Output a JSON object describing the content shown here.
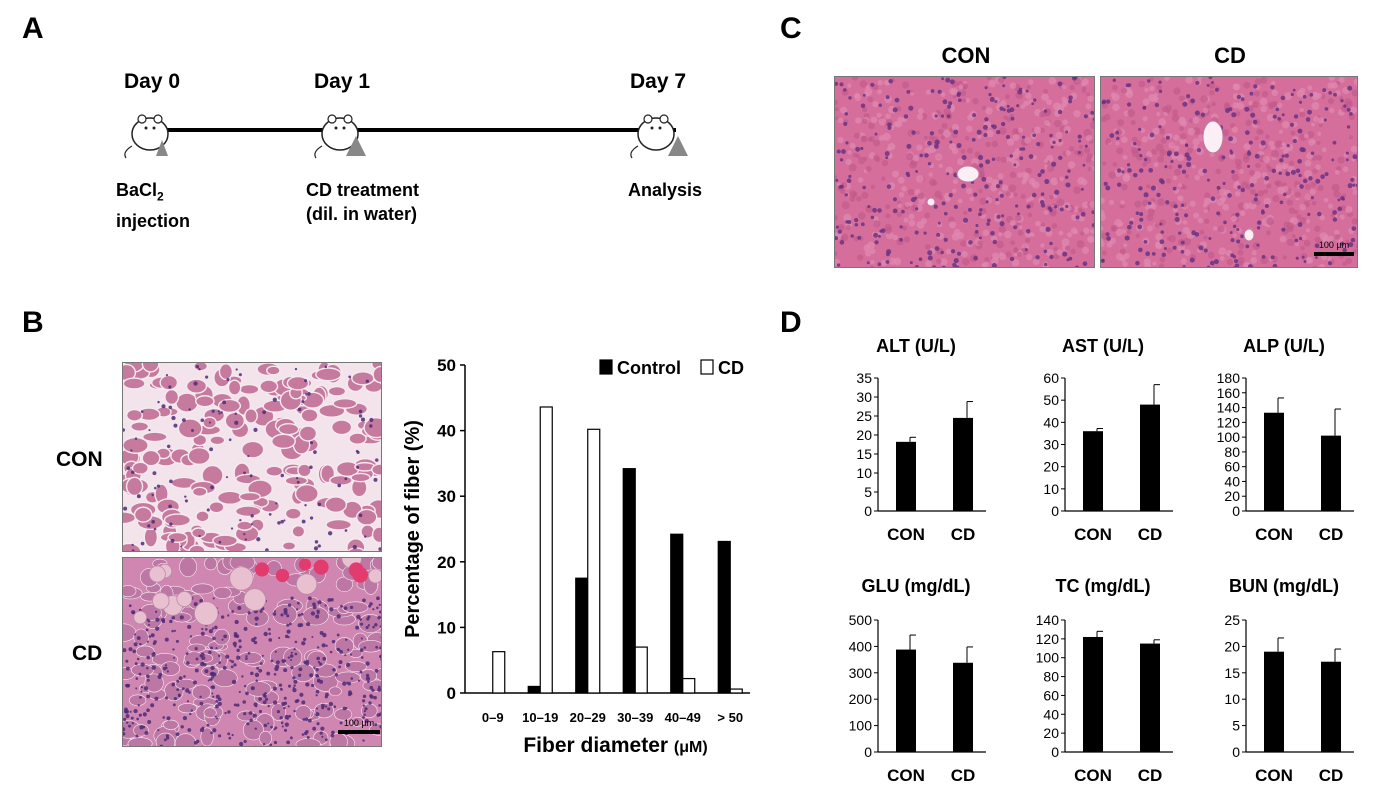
{
  "panels": {
    "a": "A",
    "b": "B",
    "c": "C",
    "d": "D"
  },
  "timeline": {
    "days": [
      "Day 0",
      "Day 1",
      "Day 7"
    ],
    "step0_line1": "BaCl",
    "step0_sub": "2",
    "step0_line2": "injection",
    "step1_line1": "CD treatment",
    "step1_line2": "(dil. in water)",
    "step2": "Analysis"
  },
  "panel_b": {
    "row_labels": [
      "CON",
      "CD"
    ],
    "scale_bar": "100 µm"
  },
  "panel_c": {
    "col_labels": [
      "CON",
      "CD"
    ],
    "scale_bar": "100 µm"
  },
  "colors": {
    "he_pink": "#d9709c",
    "he_purple": "#7a3f8f",
    "muscle_pink": "#c9789e",
    "bar_black": "#000000"
  },
  "chart_data": [
    {
      "type": "bar",
      "id": "fiber-diameter",
      "categories": [
        "0–9",
        "10–19",
        "20–29",
        "30–39",
        "40–49",
        "> 50"
      ],
      "series": [
        {
          "name": "Control",
          "values": [
            0,
            1,
            17.5,
            34.2,
            24.2,
            23.1
          ],
          "fill": "#000000"
        },
        {
          "name": "CD",
          "values": [
            6.3,
            43.6,
            40.2,
            7.0,
            2.2,
            0.6
          ],
          "fill": "#ffffff"
        }
      ],
      "xlabel": "Fiber diameter",
      "xlabel_unit": "(μM)",
      "ylabel": "Percentage of fiber (%)",
      "ylim": [
        0,
        50
      ],
      "yticks": [
        0,
        10,
        20,
        30,
        40,
        50
      ],
      "legend": "top-right"
    },
    {
      "type": "bar",
      "id": "alt",
      "title": "ALT (U/L)",
      "categories": [
        "CON",
        "CD"
      ],
      "values": [
        18.2,
        24.5
      ],
      "errors": [
        1.2,
        4.3
      ],
      "ylim": [
        0,
        35
      ],
      "yticks": [
        0,
        5,
        10,
        15,
        20,
        25,
        30,
        35
      ]
    },
    {
      "type": "bar",
      "id": "ast",
      "title": "AST (U/L)",
      "categories": [
        "CON",
        "CD"
      ],
      "values": [
        36,
        48
      ],
      "errors": [
        1.2,
        9
      ],
      "ylim": [
        0,
        60
      ],
      "yticks": [
        0,
        10,
        20,
        30,
        40,
        50,
        60
      ]
    },
    {
      "type": "bar",
      "id": "alp",
      "title": "ALP (U/L)",
      "categories": [
        "CON",
        "CD"
      ],
      "values": [
        133,
        102
      ],
      "errors": [
        20,
        36
      ],
      "ylim": [
        0,
        180
      ],
      "yticks": [
        0,
        20,
        40,
        60,
        80,
        100,
        120,
        140,
        160,
        180
      ]
    },
    {
      "type": "bar",
      "id": "glu",
      "title": "GLU (mg/dL)",
      "categories": [
        "CON",
        "CD"
      ],
      "values": [
        388,
        338
      ],
      "errors": [
        55,
        60
      ],
      "ylim": [
        0,
        500
      ],
      "yticks": [
        0,
        100,
        200,
        300,
        400,
        500
      ]
    },
    {
      "type": "bar",
      "id": "tc",
      "title": "TC (mg/dL)",
      "categories": [
        "CON",
        "CD"
      ],
      "values": [
        122,
        115
      ],
      "errors": [
        6,
        4
      ],
      "ylim": [
        0,
        140
      ],
      "yticks": [
        0,
        20,
        40,
        60,
        80,
        100,
        120,
        140
      ]
    },
    {
      "type": "bar",
      "id": "bun",
      "title": "BUN (mg/dL)",
      "categories": [
        "CON",
        "CD"
      ],
      "values": [
        19,
        17.1
      ],
      "errors": [
        2.6,
        2.4
      ],
      "ylim": [
        0,
        25
      ],
      "yticks": [
        0,
        5,
        10,
        15,
        20,
        25
      ]
    }
  ]
}
